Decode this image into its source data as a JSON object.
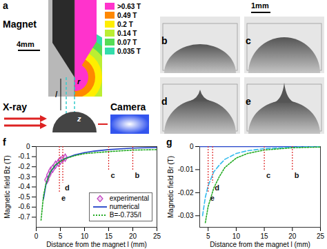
{
  "chart_data": [
    {
      "title": "f",
      "type": "line",
      "x_label": "Distance from the magnet l (mm)",
      "y_label": "Magnetic field Bz (T)",
      "xlim": [
        0,
        25
      ],
      "xticks": [
        0,
        5,
        10,
        15,
        20,
        25
      ],
      "ylim": [
        -0.8,
        0
      ],
      "yticks": [
        0,
        -0.1,
        -0.2,
        -0.3,
        -0.4,
        -0.5,
        -0.6,
        -0.7
      ],
      "legend": "lower right",
      "series": [
        {
          "name": "experimental",
          "type": "scatter",
          "marker": "diamond",
          "color": "#c040c0",
          "x": [
            2.2,
            2.6,
            3.0,
            3.4,
            4.0,
            4.6,
            5.0,
            5.5,
            6.0
          ],
          "values": [
            -0.33,
            -0.28,
            -0.24,
            -0.22,
            -0.18,
            -0.16,
            -0.14,
            -0.12,
            -0.11
          ]
        },
        {
          "name": "numerical",
          "type": "line",
          "line_style": "solid",
          "color": "#2040c8",
          "x": [
            1.5,
            2,
            2.5,
            3,
            4,
            5,
            6,
            8,
            10,
            12,
            15,
            20,
            25
          ],
          "values": [
            -0.52,
            -0.38,
            -0.3,
            -0.25,
            -0.185,
            -0.145,
            -0.118,
            -0.082,
            -0.06,
            -0.045,
            -0.03,
            -0.015,
            -0.008
          ]
        },
        {
          "name": "B=-0.735/l",
          "type": "line",
          "line_style": "dotted",
          "color": "#22aa22",
          "x": [
            1,
            1.5,
            2,
            3,
            4,
            5,
            6,
            8,
            10,
            15,
            20,
            25
          ],
          "values": [
            -0.73,
            -0.49,
            -0.37,
            -0.245,
            -0.18,
            -0.147,
            -0.12,
            -0.09,
            -0.07,
            -0.05,
            -0.035,
            -0.03
          ]
        }
      ],
      "reference_lines": {
        "color": "#dd2222",
        "line_style": "dotted",
        "lines": [
          {
            "x": 20,
            "label": "b"
          },
          {
            "x": 15,
            "label": "c"
          },
          {
            "x": 5.5,
            "label": "d"
          },
          {
            "x": 4.8,
            "label": "e"
          }
        ]
      }
    },
    {
      "title": "g",
      "type": "line",
      "x_label": "Distance from the magnet l (mm)",
      "y_label": "Magnetic field Br (T)",
      "xlim": [
        3.5,
        25
      ],
      "xticks": [
        5,
        10,
        15,
        20,
        25
      ],
      "ylim": [
        -0.035,
        0
      ],
      "yticks": [
        0,
        -0.01,
        -0.02,
        -0.03
      ],
      "series": [
        {
          "type": "line",
          "line_style": "solid",
          "color": "#2040c8",
          "x": [
            3.5,
            25
          ],
          "values": [
            0,
            0
          ]
        },
        {
          "type": "line",
          "line_style": "dashed",
          "color": "#33bbee",
          "x": [
            4,
            4.5,
            5,
            6,
            7,
            8,
            10,
            12,
            15,
            20,
            25
          ],
          "values": [
            -0.03,
            -0.022,
            -0.017,
            -0.011,
            -0.008,
            -0.0055,
            -0.003,
            -0.0018,
            -0.0009,
            -0.0003,
            -0.0001
          ]
        },
        {
          "type": "line",
          "line_style": "dotted",
          "color": "#22aa22",
          "x": [
            4.5,
            5,
            6,
            7,
            8,
            10,
            12,
            15,
            20,
            25
          ],
          "values": [
            -0.033,
            -0.026,
            -0.018,
            -0.013,
            -0.009,
            -0.005,
            -0.003,
            -0.0015,
            -0.0005,
            -0.0002
          ]
        }
      ],
      "reference_lines": {
        "color": "#dd2222",
        "line_style": "dotted",
        "lines": [
          {
            "x": 20,
            "label": "b"
          },
          {
            "x": 15,
            "label": "c"
          },
          {
            "x": 5.8,
            "label": "d"
          },
          {
            "x": 5.0,
            "label": "e"
          }
        ]
      }
    }
  ],
  "panel_a": {
    "label": "a",
    "magnet": "Magnet",
    "scale": "4mm",
    "xray": "X-ray",
    "camera": "Camera",
    "l": "l",
    "r": "r",
    "z": "z",
    "colorbar": [
      {
        "label": ">0.63 T",
        "color": "#ff33cc"
      },
      {
        "label": "0.49 T",
        "color": "#ff8800"
      },
      {
        "label": "0.2 T",
        "color": "#ffee00"
      },
      {
        "label": "0.14 T",
        "color": "#bbee33"
      },
      {
        "label": "0.07 T",
        "color": "#55dd55"
      },
      {
        "label": "0.035 T",
        "color": "#33ddaa"
      }
    ]
  },
  "photos": {
    "scale": "1mm",
    "labels": [
      "b",
      "c",
      "d",
      "e"
    ]
  }
}
